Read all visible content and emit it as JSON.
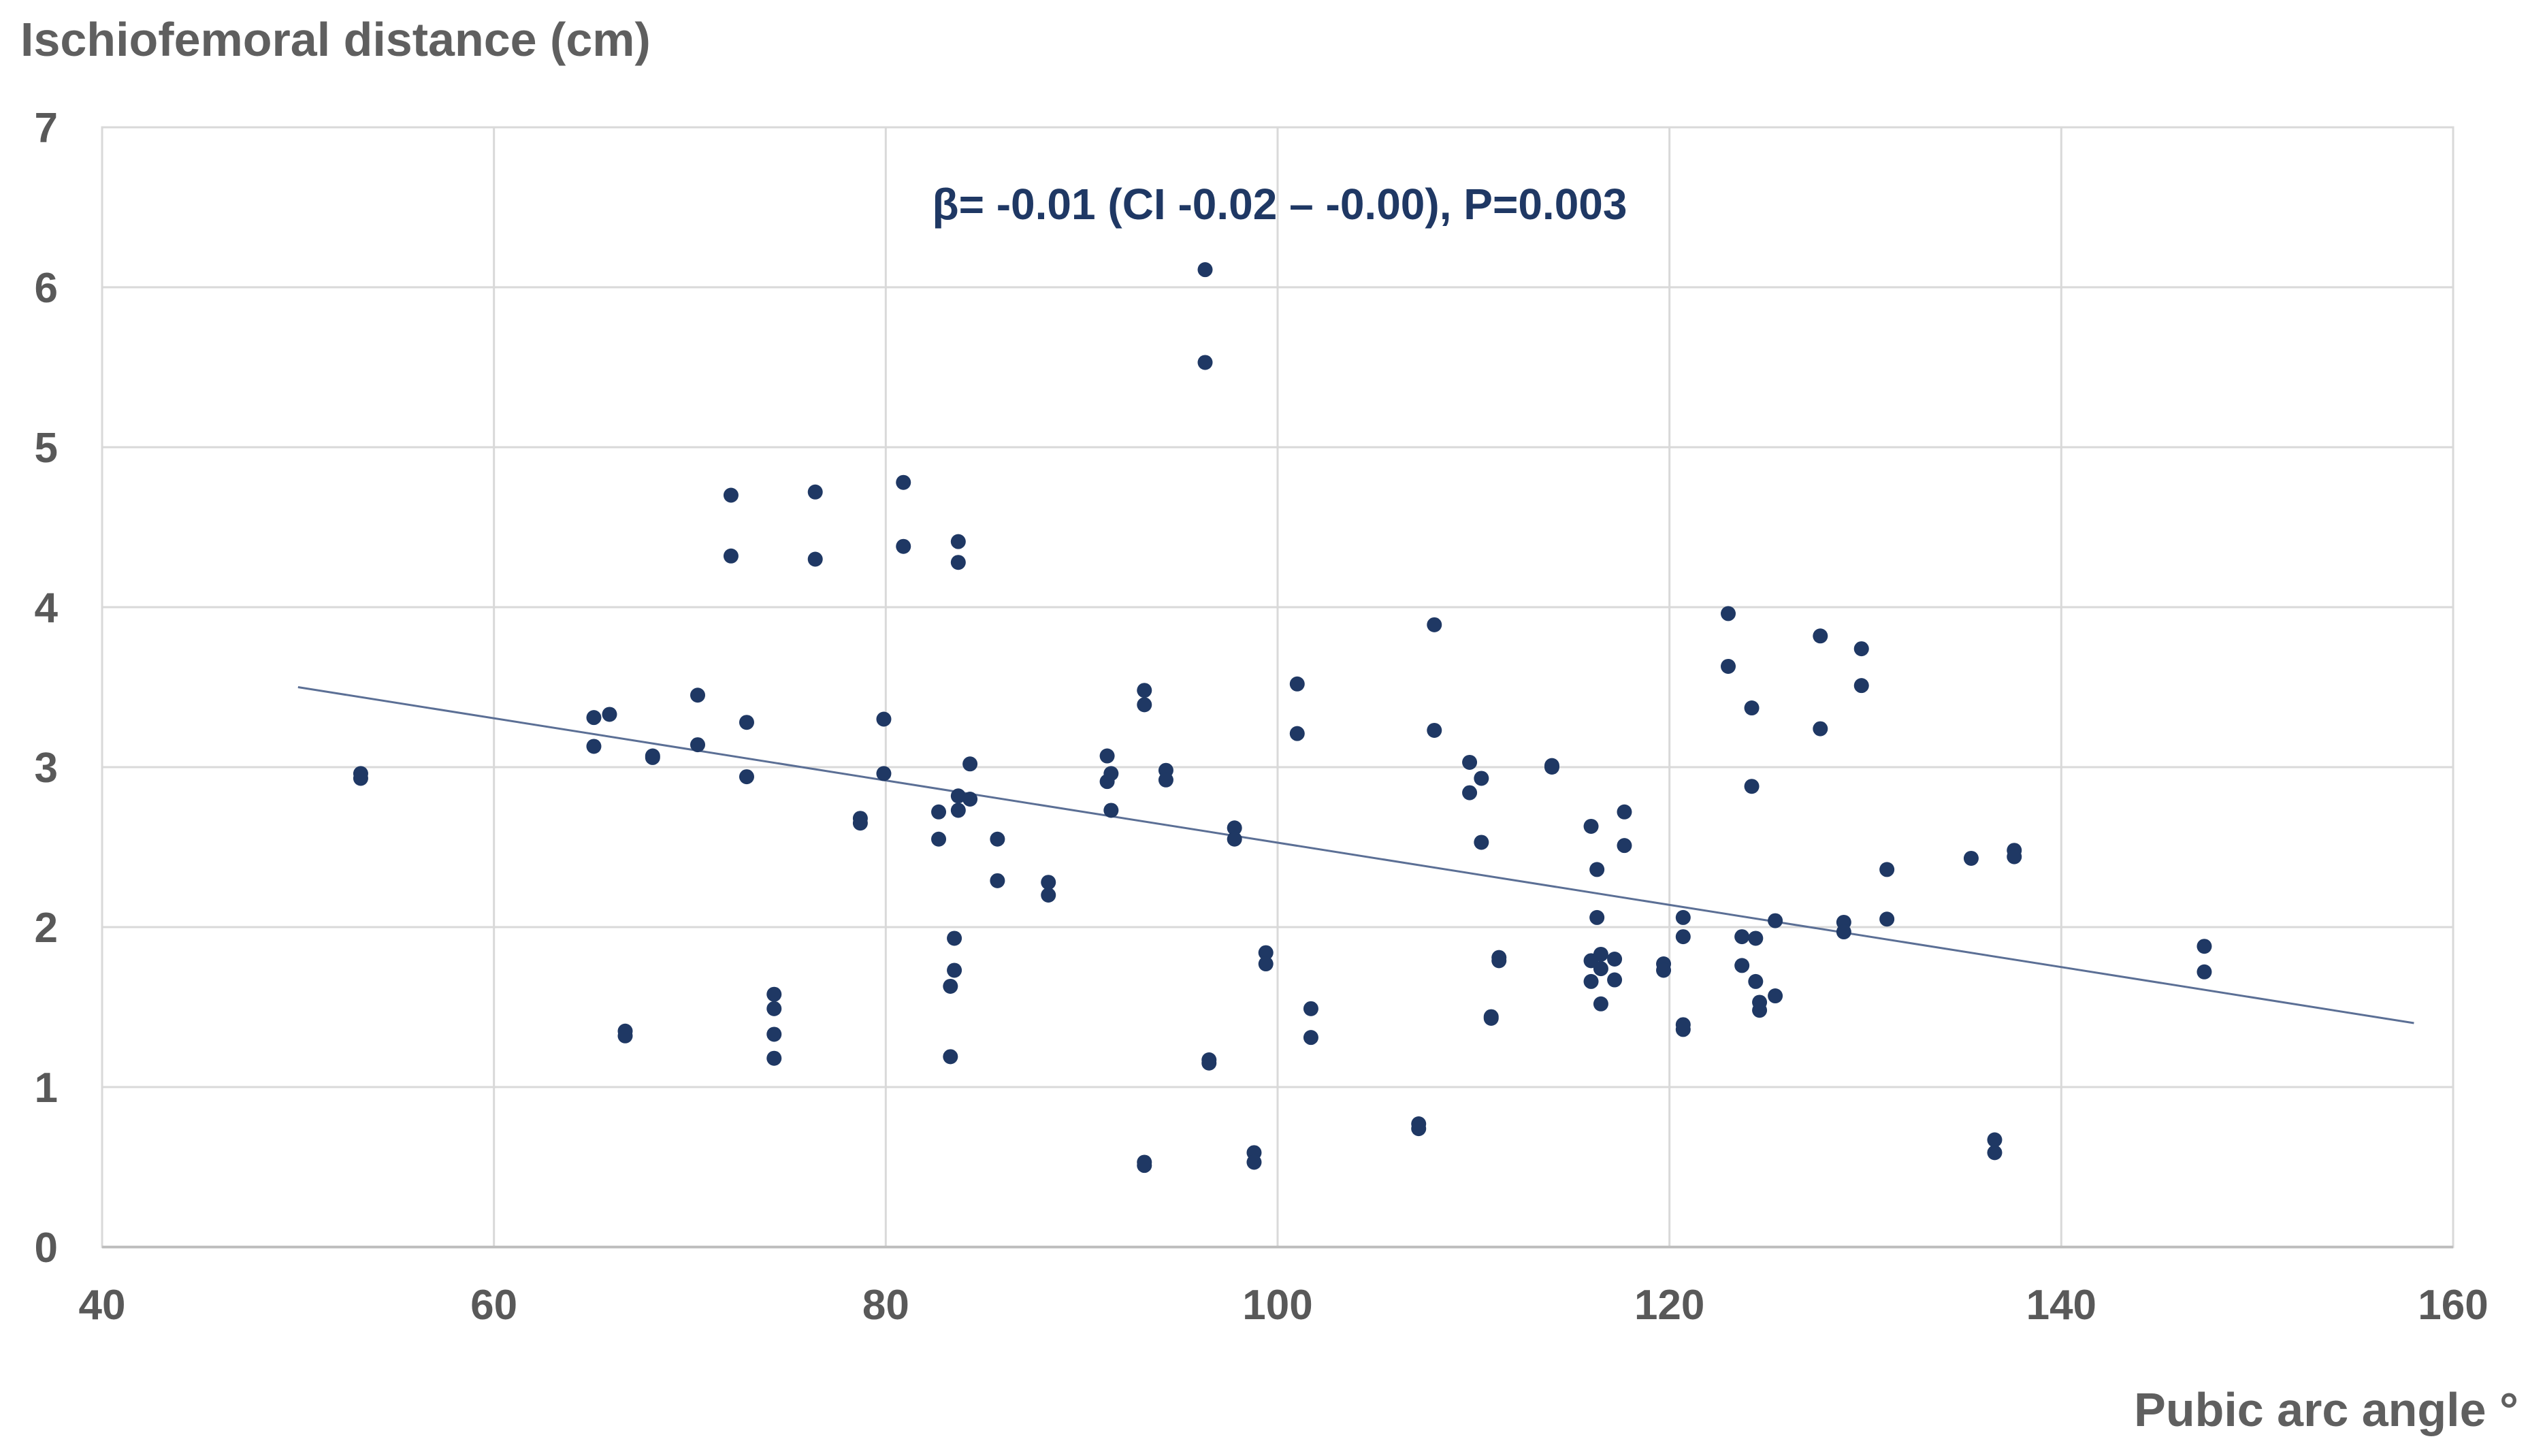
{
  "chart_data": {
    "type": "scatter",
    "title": "",
    "xlabel": "Pubic arc angle °",
    "ylabel": "Ischiofemoral distance (cm)",
    "xlim": [
      40,
      160
    ],
    "ylim": [
      0,
      7
    ],
    "x_ticks": [
      40,
      60,
      80,
      100,
      120,
      140,
      160
    ],
    "y_ticks": [
      0,
      1,
      2,
      3,
      4,
      5,
      6,
      7
    ],
    "grid": true,
    "legend": "none",
    "annotation": "β= -0.01 (CI -0.02 – -0.00), P=0.003",
    "trendline": {
      "x": [
        50,
        158
      ],
      "y": [
        3.5,
        1.4
      ]
    },
    "colors": {
      "points": "#1f3864",
      "trendline": "#5b6f95",
      "grid": "#d9d9d9",
      "axis_text": "#595959"
    },
    "series": [
      {
        "points": [
          [
            53.2,
            2.96
          ],
          [
            53.2,
            2.93
          ],
          [
            65.1,
            3.31
          ],
          [
            65.1,
            3.13
          ],
          [
            65.9,
            3.33
          ],
          [
            66.7,
            1.35
          ],
          [
            66.7,
            1.32
          ],
          [
            68.1,
            3.07
          ],
          [
            68.1,
            3.06
          ],
          [
            70.4,
            3.45
          ],
          [
            70.4,
            3.14
          ],
          [
            72.1,
            4.7
          ],
          [
            72.1,
            4.32
          ],
          [
            72.9,
            3.28
          ],
          [
            72.9,
            2.94
          ],
          [
            74.3,
            1.58
          ],
          [
            74.3,
            1.49
          ],
          [
            74.3,
            1.33
          ],
          [
            74.3,
            1.18
          ],
          [
            76.4,
            4.72
          ],
          [
            76.4,
            4.3
          ],
          [
            78.7,
            2.68
          ],
          [
            78.7,
            2.65
          ],
          [
            79.9,
            3.3
          ],
          [
            79.9,
            2.96
          ],
          [
            80.9,
            4.78
          ],
          [
            80.9,
            4.38
          ],
          [
            82.7,
            2.72
          ],
          [
            82.7,
            2.55
          ],
          [
            83.3,
            1.63
          ],
          [
            83.3,
            1.19
          ],
          [
            83.5,
            1.93
          ],
          [
            83.5,
            1.73
          ],
          [
            83.7,
            4.41
          ],
          [
            83.7,
            4.28
          ],
          [
            83.7,
            2.82
          ],
          [
            83.7,
            2.73
          ],
          [
            84.3,
            3.02
          ],
          [
            84.3,
            2.8
          ],
          [
            85.7,
            2.55
          ],
          [
            85.7,
            2.29
          ],
          [
            88.3,
            2.28
          ],
          [
            88.3,
            2.2
          ],
          [
            91.3,
            3.07
          ],
          [
            91.3,
            2.91
          ],
          [
            91.5,
            2.96
          ],
          [
            91.5,
            2.73
          ],
          [
            93.2,
            3.48
          ],
          [
            93.2,
            3.39
          ],
          [
            93.2,
            0.53
          ],
          [
            93.2,
            0.51
          ],
          [
            94.3,
            2.98
          ],
          [
            94.3,
            2.92
          ],
          [
            96.3,
            6.11
          ],
          [
            96.3,
            5.53
          ],
          [
            96.5,
            1.17
          ],
          [
            96.5,
            1.15
          ],
          [
            97.8,
            2.62
          ],
          [
            97.8,
            2.55
          ],
          [
            98.8,
            0.59
          ],
          [
            98.8,
            0.53
          ],
          [
            99.4,
            1.84
          ],
          [
            99.4,
            1.77
          ],
          [
            101.0,
            3.52
          ],
          [
            101.0,
            3.21
          ],
          [
            101.7,
            1.49
          ],
          [
            101.7,
            1.31
          ],
          [
            107.2,
            0.77
          ],
          [
            107.2,
            0.74
          ],
          [
            108.0,
            3.89
          ],
          [
            108.0,
            3.23
          ],
          [
            109.8,
            3.03
          ],
          [
            109.8,
            2.84
          ],
          [
            110.4,
            2.93
          ],
          [
            110.4,
            2.53
          ],
          [
            110.9,
            1.44
          ],
          [
            110.9,
            1.43
          ],
          [
            111.3,
            1.81
          ],
          [
            111.3,
            1.79
          ],
          [
            114.0,
            3.01
          ],
          [
            114.0,
            3.0
          ],
          [
            116.0,
            2.63
          ],
          [
            116.0,
            1.79
          ],
          [
            116.0,
            1.66
          ],
          [
            116.3,
            2.36
          ],
          [
            116.3,
            2.06
          ],
          [
            116.5,
            1.83
          ],
          [
            116.5,
            1.74
          ],
          [
            116.5,
            1.52
          ],
          [
            117.2,
            1.8
          ],
          [
            117.2,
            1.67
          ],
          [
            117.7,
            2.72
          ],
          [
            117.7,
            2.51
          ],
          [
            119.7,
            1.77
          ],
          [
            119.7,
            1.73
          ],
          [
            120.7,
            2.06
          ],
          [
            120.7,
            1.94
          ],
          [
            120.7,
            1.39
          ],
          [
            120.7,
            1.36
          ],
          [
            123.0,
            3.96
          ],
          [
            123.0,
            3.63
          ],
          [
            123.7,
            1.94
          ],
          [
            123.7,
            1.76
          ],
          [
            124.2,
            3.37
          ],
          [
            124.2,
            2.88
          ],
          [
            124.4,
            1.93
          ],
          [
            124.4,
            1.66
          ],
          [
            124.6,
            1.53
          ],
          [
            124.6,
            1.48
          ],
          [
            125.4,
            2.04
          ],
          [
            125.4,
            1.57
          ],
          [
            127.7,
            3.82
          ],
          [
            127.7,
            3.24
          ],
          [
            128.9,
            2.03
          ],
          [
            128.9,
            1.97
          ],
          [
            129.8,
            3.74
          ],
          [
            129.8,
            3.51
          ],
          [
            131.1,
            2.36
          ],
          [
            131.1,
            2.05
          ],
          [
            135.4,
            2.43
          ],
          [
            136.6,
            0.67
          ],
          [
            136.6,
            0.59
          ],
          [
            137.6,
            2.48
          ],
          [
            137.6,
            2.44
          ],
          [
            147.3,
            1.88
          ],
          [
            147.3,
            1.72
          ]
        ]
      }
    ]
  }
}
